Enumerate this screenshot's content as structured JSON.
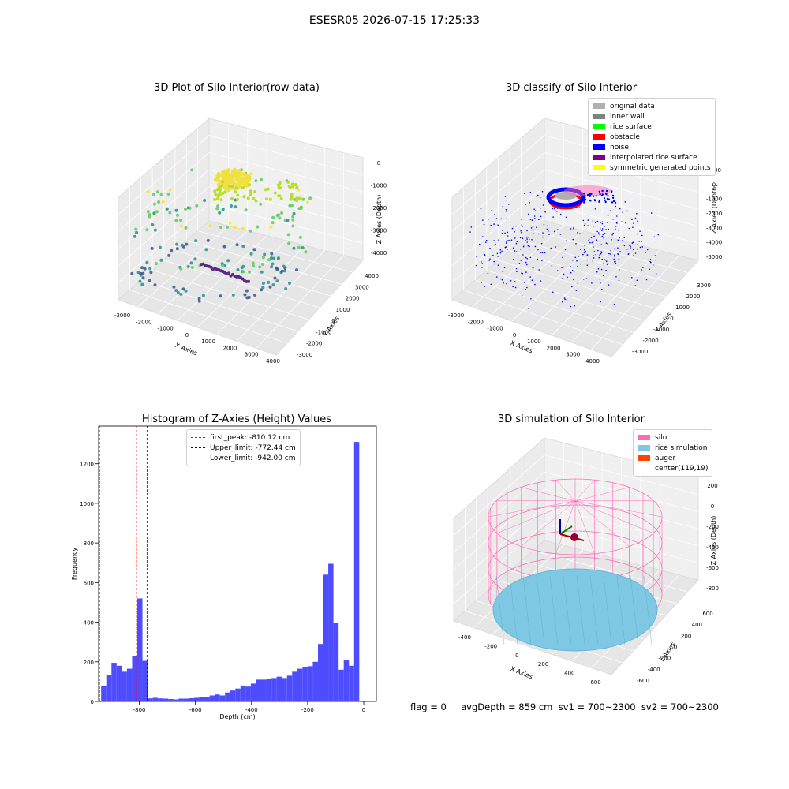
{
  "suptitle": "ESESR05 2026-07-15 17:25:33",
  "footer": "flag = 0     avgDepth = 859 cm  sv1 = 700~2300  sv2 = 700~2300",
  "chart_data": [
    {
      "type": "scatter",
      "title": "3D Plot of Silo Interior(row data)",
      "xlabel": "X Axies",
      "ylabel": "Y Axies",
      "zlabel": "Z Axies (Depth)",
      "x_ticks": [
        "-3000",
        "-2000",
        "-1000",
        "0",
        "1000",
        "2000",
        "3000",
        "4000"
      ],
      "y_ticks": [
        "-3000",
        "-2000",
        "-1000",
        "0",
        "1000",
        "2000",
        "3000",
        "4000"
      ],
      "z_ticks": [
        "0",
        "-1000",
        "-2000",
        "-3000",
        "-4000"
      ],
      "colormap": "viridis"
    },
    {
      "type": "scatter",
      "title": "3D classify of Silo Interior",
      "xlabel": "X Axies",
      "ylabel": "Y Axies",
      "zlabel": "Z Axies (Depth)",
      "x_ticks": [
        "-3000",
        "-2000",
        "-1000",
        "0",
        "1000",
        "2000",
        "3000",
        "4000"
      ],
      "y_ticks": [
        "-3000",
        "-2000",
        "-1000",
        "0",
        "1000",
        "2000",
        "3000"
      ],
      "z_ticks": [
        "1000",
        "0",
        "-1000",
        "-2000",
        "-3000",
        "-4000",
        "-5000"
      ],
      "legend": [
        {
          "label": "original data",
          "color": "#b0b0b0"
        },
        {
          "label": "inner wall",
          "color": "#808080"
        },
        {
          "label": "rice surface",
          "color": "#00ff00"
        },
        {
          "label": "obstacle",
          "color": "#ff0000"
        },
        {
          "label": "noise",
          "color": "#0000ff"
        },
        {
          "label": "interpolated rice surface",
          "color": "#800080"
        },
        {
          "label": "symmetric generated points",
          "color": "#ffff00"
        }
      ]
    },
    {
      "type": "bar",
      "title": "Histogram of Z-Axies (Height) Values",
      "xlabel": "Depth (cm)",
      "ylabel": "Frequency",
      "xlim": [
        -945,
        45
      ],
      "ylim": [
        0,
        1390
      ],
      "x_ticks": [
        -800,
        -600,
        -400,
        -200,
        0
      ],
      "y_ticks": [
        0,
        200,
        400,
        600,
        800,
        1000,
        1200
      ],
      "bar_color": "#4d4dff",
      "bin_start": -936,
      "bin_width": 18.4,
      "values": [
        80,
        135,
        195,
        180,
        150,
        165,
        230,
        520,
        205,
        15,
        18,
        15,
        14,
        12,
        10,
        14,
        14,
        16,
        18,
        22,
        24,
        30,
        35,
        30,
        45,
        55,
        65,
        80,
        75,
        90,
        110,
        110,
        112,
        118,
        125,
        118,
        130,
        150,
        165,
        172,
        178,
        200,
        290,
        640,
        695,
        395,
        160,
        210,
        180,
        1310
      ],
      "vlines": [
        {
          "label": "first_peak: -810.12 cm",
          "x": -810.12,
          "color": "#ff0000"
        },
        {
          "label": "Upper_limit: -772.44 cm",
          "x": -772.44,
          "color": "#0000aa"
        },
        {
          "label": "Lower_limit: -942.00 cm",
          "x": -942.0,
          "color": "#0000aa"
        }
      ]
    },
    {
      "type": "scatter",
      "title": "3D simulation of Silo Interior",
      "xlabel": "X Axies",
      "ylabel": "Y Axies",
      "zlabel": "Z Axies (Depth)",
      "x_ticks": [
        "-400",
        "-200",
        "0",
        "200",
        "400",
        "600"
      ],
      "y_ticks": [
        "-600",
        "-400",
        "-200",
        "0",
        "200",
        "400",
        "600"
      ],
      "z_ticks": [
        "200",
        "0",
        "-200",
        "-400",
        "-600",
        "-800"
      ],
      "legend": [
        {
          "label": "silo",
          "color": "#ff69b4"
        },
        {
          "label": "rice simulation",
          "color": "#7ec8e3"
        },
        {
          "label": "auger",
          "color": "#ff4500"
        },
        {
          "label": "center(119,19)",
          "color": ""
        }
      ]
    }
  ]
}
